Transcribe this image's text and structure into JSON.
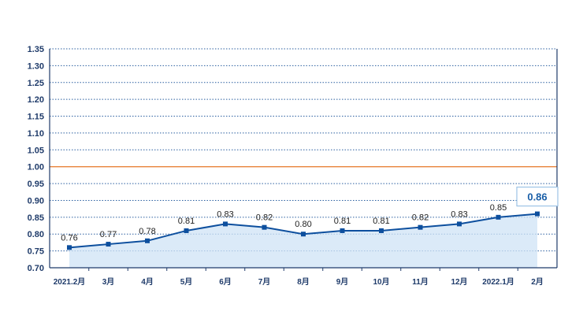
{
  "chart_data": {
    "type": "line",
    "categories": [
      "2021.2月",
      "3月",
      "4月",
      "5月",
      "6月",
      "7月",
      "8月",
      "9月",
      "10月",
      "11月",
      "12月",
      "2022.1月",
      "2月"
    ],
    "values": [
      0.76,
      0.77,
      0.78,
      0.81,
      0.83,
      0.82,
      0.8,
      0.81,
      0.81,
      0.82,
      0.83,
      0.85,
      0.86
    ],
    "value_labels": [
      "0.76",
      "0.77",
      "0.78",
      "0.81",
      "0.83",
      "0.82",
      "0.80",
      "0.81",
      "0.81",
      "0.82",
      "0.83",
      "0.85",
      "0.86"
    ],
    "title": "",
    "xlabel": "",
    "ylabel": "",
    "ylim": [
      0.7,
      1.35
    ],
    "yticks": [
      "0.70",
      "0.75",
      "0.80",
      "0.85",
      "0.90",
      "0.95",
      "1.00",
      "1.05",
      "1.10",
      "1.15",
      "1.20",
      "1.25",
      "1.30",
      "1.35"
    ],
    "reference_line": {
      "value": 1.0,
      "color": "#e8833a"
    },
    "grid": true,
    "colors": {
      "line": "#0d4f9e",
      "marker": "#0d4f9e",
      "axis": "#1f3b6a",
      "grid": "#2b5fa0",
      "area": "#cfe3f5",
      "highlight_border": "#9cc3e6",
      "highlight_text": "#1a5fa8"
    }
  }
}
